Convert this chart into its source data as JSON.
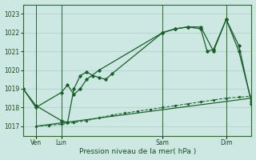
{
  "background_color": "#cde8e2",
  "grid_color": "#aacfc8",
  "line_color": "#1a5e2a",
  "title": "Pression niveau de la mer( hPa )",
  "ylim": [
    1016.5,
    1023.5
  ],
  "yticks": [
    1017,
    1018,
    1019,
    1020,
    1021,
    1022,
    1023
  ],
  "xlim": [
    0,
    108
  ],
  "xtick_pos": [
    6,
    18,
    66,
    96
  ],
  "xtick_labels": [
    "Ven",
    "Lun",
    "Sam",
    "Dim"
  ],
  "vline_pos": [
    6,
    18,
    66,
    96
  ],
  "line1_x": [
    0,
    6,
    18,
    21,
    24,
    27,
    30,
    36,
    66,
    72,
    78,
    84,
    87,
    90,
    96,
    102,
    108
  ],
  "line1_y": [
    1019.0,
    1018.0,
    1018.8,
    1019.2,
    1018.7,
    1019.0,
    1019.5,
    1020.0,
    1022.0,
    1022.2,
    1022.3,
    1022.2,
    1021.0,
    1021.1,
    1022.7,
    1021.3,
    1018.2
  ],
  "line2_x": [
    0,
    6,
    18,
    21,
    24,
    27,
    30,
    33,
    36,
    39,
    42,
    66,
    72,
    78,
    84,
    90,
    96,
    102,
    108
  ],
  "line2_y": [
    1019.0,
    1018.1,
    1017.3,
    1017.2,
    1019.0,
    1019.7,
    1019.9,
    1019.7,
    1019.6,
    1019.5,
    1019.8,
    1022.0,
    1022.2,
    1022.3,
    1022.3,
    1021.0,
    1022.7,
    1021.0,
    1018.3
  ],
  "line3_x": [
    6,
    108
  ],
  "line3_y": [
    1017.0,
    1018.5
  ],
  "line4_x": [
    6,
    12,
    18,
    24,
    30,
    36,
    42,
    48,
    54,
    60,
    66,
    72,
    78,
    84,
    90,
    96,
    102,
    108
  ],
  "line4_y": [
    1017.0,
    1017.05,
    1017.1,
    1017.2,
    1017.3,
    1017.45,
    1017.6,
    1017.7,
    1017.8,
    1017.9,
    1018.0,
    1018.1,
    1018.2,
    1018.3,
    1018.4,
    1018.5,
    1018.55,
    1018.6
  ]
}
